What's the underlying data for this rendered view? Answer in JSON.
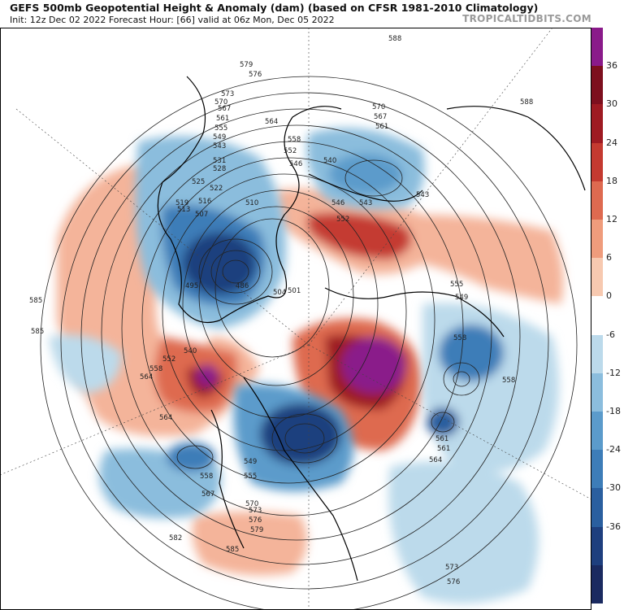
{
  "header": {
    "title": "GEFS 500mb Geopotential Height & Anomaly (dam) (based on CFSR 1981-2010 Climatology)",
    "init_line": "Init: 12z Dec 02 2022   Forecast Hour: [66]   valid at 06z Mon, Dec 05 2022",
    "brand": "TROPICALTIDBITS.COM"
  },
  "colorbar": {
    "labels": [
      "36",
      "30",
      "24",
      "18",
      "12",
      "6",
      "0",
      "-6",
      "-12",
      "-18",
      "-24",
      "-30",
      "-36"
    ],
    "colors": [
      "#1a2a60",
      "#1e3f7e",
      "#2a5f9f",
      "#3d7db8",
      "#5b9bcb",
      "#8bbddd",
      "#bcdaeb",
      "#ffffff",
      "#f7c9b0",
      "#ef9c7c",
      "#de6a50",
      "#c43a30",
      "#9e1a22",
      "#7d0f1e",
      "#8a1a8a"
    ]
  },
  "contours": {
    "labels": [
      "588",
      "579",
      "576",
      "573",
      "570",
      "567",
      "561",
      "564",
      "555",
      "558",
      "552",
      "549",
      "546",
      "543",
      "540",
      "531",
      "528",
      "525",
      "522",
      "519",
      "516",
      "513",
      "510",
      "507",
      "504",
      "501",
      "495",
      "486",
      "585",
      "582",
      "570",
      "567",
      "561",
      "558",
      "552",
      "546",
      "543",
      "549",
      "555",
      "558",
      "561",
      "564",
      "573",
      "576",
      "564",
      "558",
      "552",
      "540",
      "543",
      "549",
      "555",
      "558",
      "567",
      "573",
      "576",
      "579",
      "585",
      "570",
      "588",
      "585",
      "564",
      "561"
    ]
  }
}
